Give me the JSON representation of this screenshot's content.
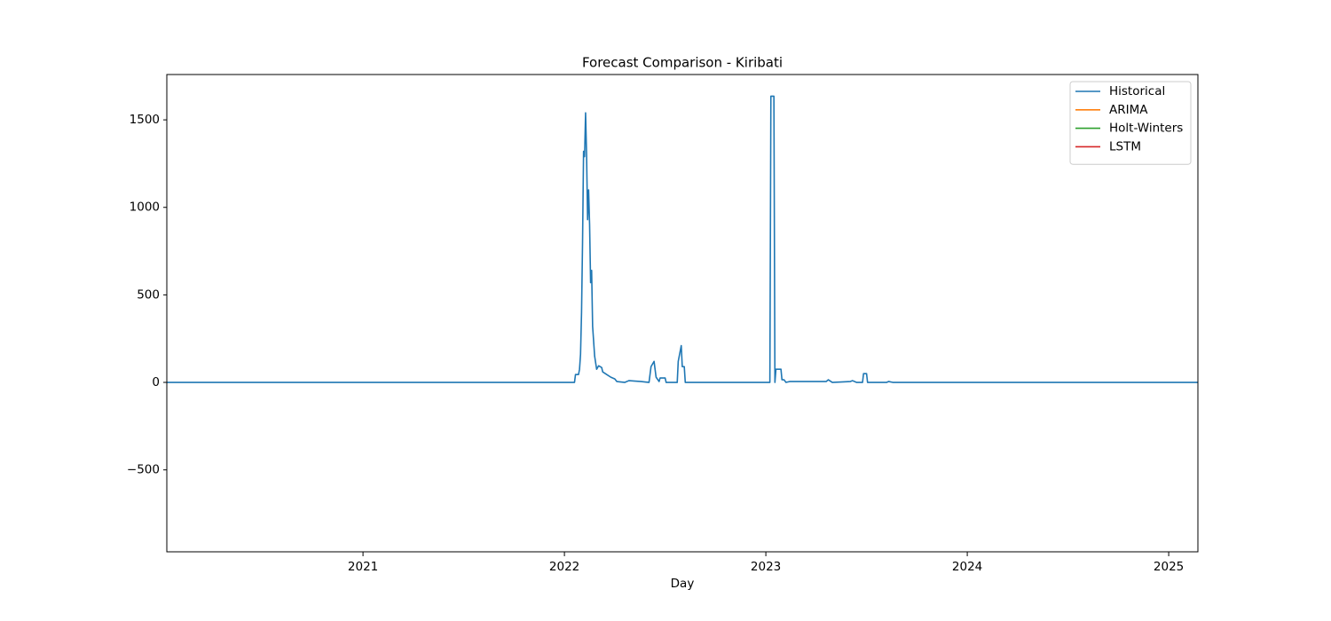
{
  "chart_data": {
    "type": "line",
    "title": "Forecast Comparison - Kiribati",
    "x_label": "Day",
    "xlim": [
      2020.026,
      2025.145
    ],
    "xticks": [
      2021,
      2022,
      2023,
      2024,
      2025
    ],
    "ylim": [
      -968,
      1759
    ],
    "yticks": [
      {
        "value": -500,
        "label": "−500"
      },
      0,
      500,
      1000,
      1500
    ],
    "legend": "upper right",
    "series": [
      {
        "name": "Historical",
        "color": "#1f77b4",
        "x": [
          2020.026,
          2022.05,
          2022.055,
          2022.07,
          2022.075,
          2022.08,
          2022.085,
          2022.09,
          2022.095,
          2022.1,
          2022.105,
          2022.11,
          2022.115,
          2022.12,
          2022.125,
          2022.13,
          2022.135,
          2022.14,
          2022.15,
          2022.16,
          2022.17,
          2022.185,
          2022.19,
          2022.21,
          2022.23,
          2022.25,
          2022.26,
          2022.3,
          2022.32,
          2022.38,
          2022.42,
          2022.43,
          2022.445,
          2022.455,
          2022.47,
          2022.475,
          2022.5,
          2022.505,
          2022.56,
          2022.565,
          2022.58,
          2022.585,
          2022.595,
          2022.6,
          2023.02,
          2023.025,
          2023.04,
          2023.045,
          2023.05,
          2023.075,
          2023.08,
          2023.09,
          2023.1,
          2023.12,
          2023.3,
          2023.31,
          2023.33,
          2023.42,
          2023.43,
          2023.45,
          2023.48,
          2023.485,
          2023.5,
          2023.505,
          2023.6,
          2023.61,
          2023.63,
          2025.145
        ],
        "values": [
          0,
          0,
          45,
          45,
          75,
          160,
          400,
          800,
          1320,
          1290,
          1540,
          1300,
          930,
          1100,
          900,
          570,
          640,
          320,
          150,
          75,
          95,
          85,
          60,
          45,
          30,
          20,
          5,
          0,
          10,
          5,
          0,
          90,
          120,
          30,
          5,
          25,
          25,
          0,
          0,
          120,
          210,
          90,
          90,
          0,
          0,
          1635,
          1635,
          0,
          75,
          75,
          15,
          15,
          0,
          5,
          5,
          15,
          0,
          5,
          10,
          0,
          0,
          50,
          50,
          0,
          0,
          5,
          0,
          0
        ]
      },
      {
        "name": "ARIMA",
        "color": "#ff7f0e",
        "x": [],
        "values": []
      },
      {
        "name": "Holt-Winters",
        "color": "#2ca02c",
        "x": [],
        "values": []
      },
      {
        "name": "LSTM",
        "color": "#d62728",
        "x": [],
        "values": []
      }
    ]
  }
}
